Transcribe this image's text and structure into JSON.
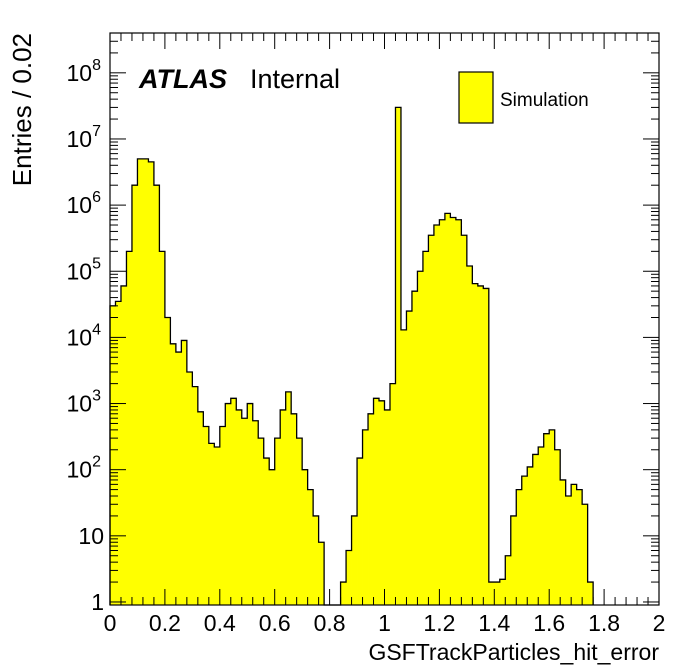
{
  "chart_data": {
    "type": "bar",
    "style": "filled step histogram",
    "xlabel": "GSFTrackParticles_hit_error",
    "ylabel": "Entries / 0.02",
    "xlim": [
      0,
      2
    ],
    "ylim": [
      0.9,
      400000000
    ],
    "yscale": "log",
    "bin_width": 0.02,
    "x_ticks": [
      "0",
      "0.2",
      "0.4",
      "0.6",
      "0.8",
      "1",
      "1.2",
      "1.4",
      "1.6",
      "1.8",
      "2"
    ],
    "y_ticks": [
      {
        "value": 1,
        "base": "1",
        "exp": ""
      },
      {
        "value": 10,
        "base": "10",
        "exp": ""
      },
      {
        "value": 100,
        "base": "10",
        "exp": "2"
      },
      {
        "value": 1000,
        "base": "10",
        "exp": "3"
      },
      {
        "value": 10000,
        "base": "10",
        "exp": "4"
      },
      {
        "value": 100000,
        "base": "10",
        "exp": "5"
      },
      {
        "value": 1000000,
        "base": "10",
        "exp": "6"
      },
      {
        "value": 10000000,
        "base": "10",
        "exp": "7"
      },
      {
        "value": 100000000,
        "base": "10",
        "exp": "8"
      }
    ],
    "grid": false,
    "legend_position": "top-right",
    "series": [
      {
        "name": "Simulation",
        "color": "#ffff00",
        "edge_color": "#000000",
        "bin_edges_start": 0,
        "values": [
          30000,
          35000,
          60000,
          200000,
          2000000,
          5000000,
          5000000,
          4500000,
          2000000,
          200000,
          20000,
          8000,
          6000,
          9000,
          3000,
          1800,
          750,
          450,
          250,
          220,
          450,
          1000,
          1200,
          800,
          600,
          1000,
          550,
          300,
          150,
          100,
          300,
          800,
          1500,
          700,
          300,
          100,
          50,
          20,
          8,
          0,
          0,
          0,
          2,
          6,
          20,
          150,
          400,
          700,
          1200,
          1100,
          800,
          2000,
          30000000,
          13000,
          25000,
          50000,
          100000,
          200000,
          350000,
          500000,
          600000,
          750000,
          650000,
          600000,
          350000,
          120000,
          65000,
          60000,
          55000,
          2,
          2,
          2.2,
          5,
          20,
          50,
          80,
          110,
          170,
          220,
          350,
          400,
          200,
          70,
          40,
          60,
          50,
          30,
          2
        ]
      }
    ],
    "annotations": {
      "brand": "ATLAS",
      "status": "Internal"
    }
  }
}
